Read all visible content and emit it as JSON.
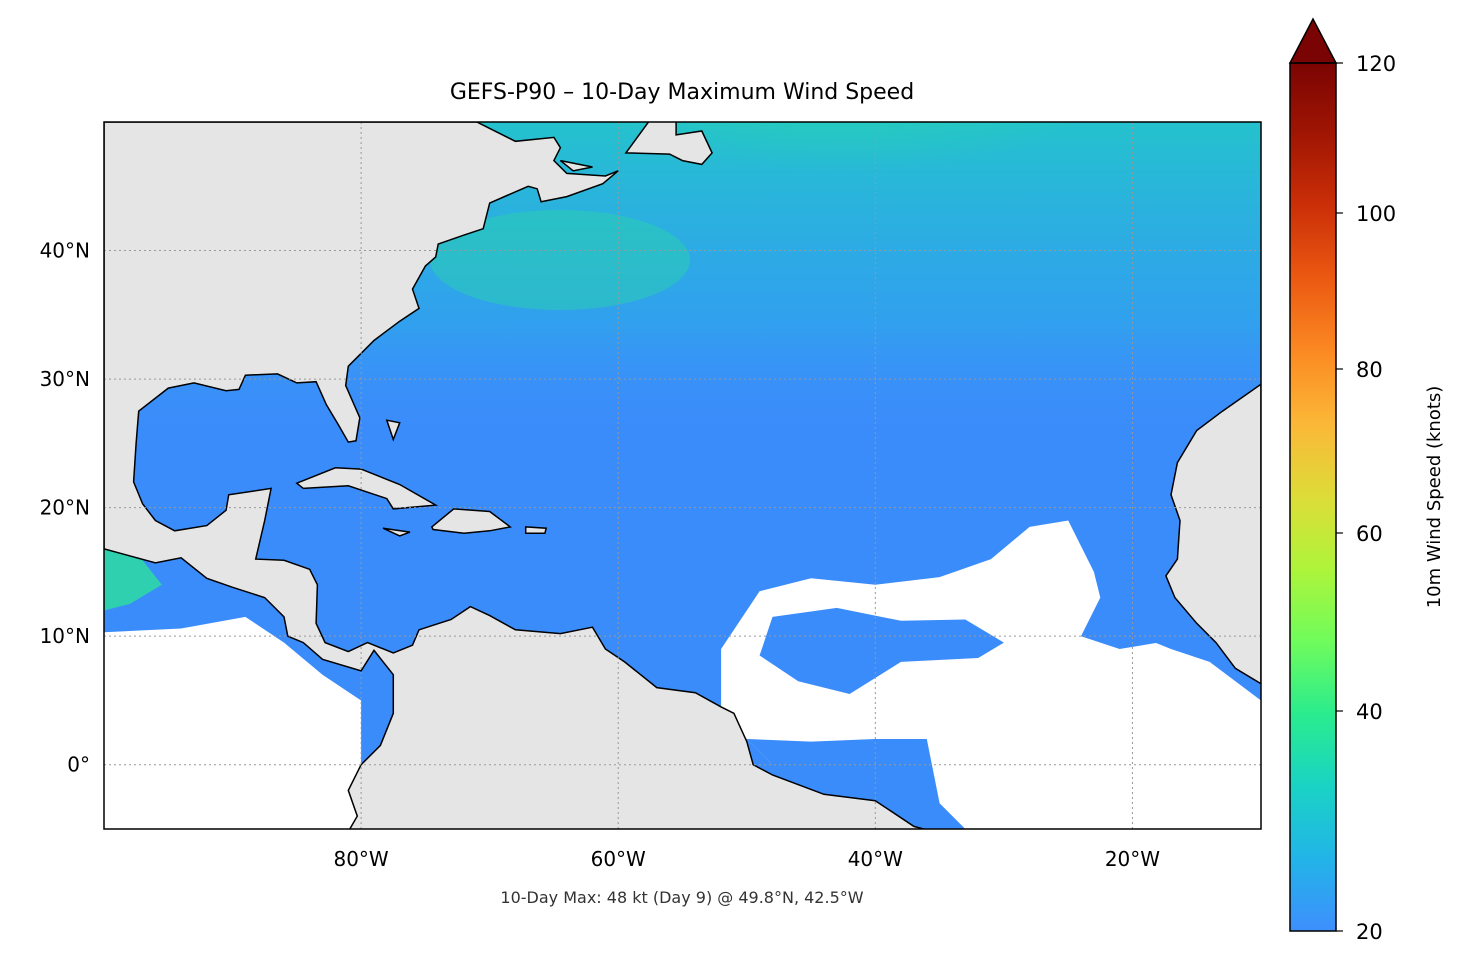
{
  "title": "GEFS-P90 – 10-Day Maximum Wind Speed",
  "subtitle": "10-Day Max: 48 kt (Day 9) @ 49.8°N, 42.5°W",
  "map": {
    "extent": {
      "lon_min": -100,
      "lon_max": -10,
      "lat_min": -5,
      "lat_max": 50
    },
    "x_ticks": [
      {
        "value": -80,
        "label": "80°W"
      },
      {
        "value": -60,
        "label": "60°W"
      },
      {
        "value": -40,
        "label": "40°W"
      },
      {
        "value": -20,
        "label": "20°W"
      }
    ],
    "y_ticks": [
      {
        "value": 0,
        "label": "0°"
      },
      {
        "value": 10,
        "label": "10°N"
      },
      {
        "value": 20,
        "label": "20°N"
      },
      {
        "value": 30,
        "label": "30°N"
      },
      {
        "value": 40,
        "label": "40°N"
      }
    ],
    "gridlines": true,
    "land_color": "#e5e5e5",
    "max_point": {
      "lat": 49.8,
      "lon": -42.5,
      "value_kt": 48,
      "day": 9
    }
  },
  "colorbar": {
    "label": "10m Wind Speed (knots)",
    "colormap": "turbo",
    "extend": "max",
    "ticks": [
      {
        "value": 20,
        "label": "20"
      },
      {
        "value": 40,
        "label": "40"
      },
      {
        "value": 60,
        "label": "60"
      },
      {
        "value": 80,
        "label": "80"
      },
      {
        "value": 100,
        "label": "100"
      },
      {
        "value": 120,
        "label": "120"
      }
    ],
    "colors": [
      "#3e8ffd",
      "#22b4e8",
      "#1ad3c4",
      "#2aec8e",
      "#6ffc5c",
      "#aef43a",
      "#dddc38",
      "#fbb838",
      "#fb8a22",
      "#ec5a12",
      "#cc3008",
      "#a11603",
      "#7a0403"
    ]
  }
}
